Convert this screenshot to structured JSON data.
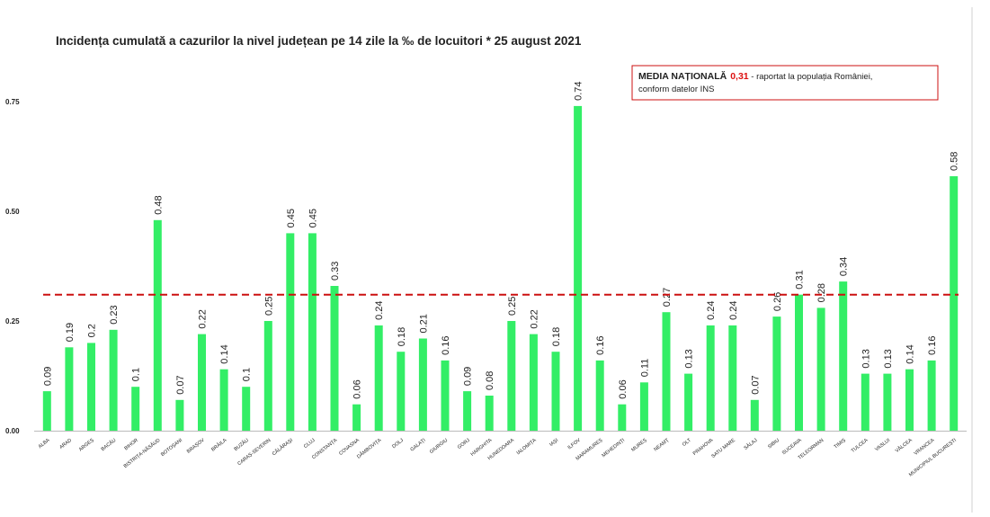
{
  "chart_data": {
    "type": "bar",
    "title": "Incidența cumulată a cazurilor la nivel județean pe 14 zile la ‰ de locuitori * 25 august 2021",
    "xlabel": "",
    "ylabel": "",
    "ylim": [
      0,
      0.8
    ],
    "yticks": [
      0.0,
      0.25,
      0.5,
      0.75
    ],
    "ytick_labels": [
      "0.00",
      "0.25",
      "0.50",
      "0.75"
    ],
    "grid": false,
    "bar_color": "#33ee66",
    "categories": [
      "ALBA",
      "ARAD",
      "ARGEȘ",
      "BACĂU",
      "BIHOR",
      "BISTRIȚA-NĂSĂUD",
      "BOTOȘANI",
      "BRAȘOV",
      "BRĂILA",
      "BUZĂU",
      "CARAȘ-SEVERIN",
      "CĂLĂRAȘI",
      "CLUJ",
      "CONSTANȚA",
      "COVASNA",
      "DÂMBOVIȚA",
      "DOLJ",
      "GALAȚI",
      "GIURGIU",
      "GORJ",
      "HARGHITA",
      "HUNEDOARA",
      "IALOMIȚA",
      "IAȘI",
      "ILFOV",
      "MARAMUREȘ",
      "MEHEDINȚI",
      "MUREȘ",
      "NEAMȚ",
      "OLT",
      "PRAHOVA",
      "SATU MARE",
      "SĂLAJ",
      "SIBIU",
      "SUCEAVA",
      "TELEORMAN",
      "TIMIȘ",
      "TULCEA",
      "VASLUI",
      "VÂLCEA",
      "VRANCEA",
      "MUNICIPIUL BUCUREȘTI"
    ],
    "values": [
      0.09,
      0.19,
      0.2,
      0.23,
      0.1,
      0.48,
      0.07,
      0.22,
      0.14,
      0.1,
      0.25,
      0.45,
      0.45,
      0.33,
      0.06,
      0.24,
      0.18,
      0.21,
      0.16,
      0.09,
      0.08,
      0.25,
      0.22,
      0.18,
      0.74,
      0.16,
      0.06,
      0.11,
      0.27,
      0.13,
      0.24,
      0.24,
      0.07,
      0.26,
      0.31,
      0.28,
      0.34,
      0.13,
      0.13,
      0.14,
      0.16,
      0.58
    ],
    "value_labels": [
      "0.09",
      "0.19",
      "0.2",
      "0.23",
      "0.1",
      "0.48",
      "0.07",
      "0.22",
      "0.14",
      "0.1",
      "0.25",
      "0.45",
      "0.45",
      "0.33",
      "0.06",
      "0.24",
      "0.18",
      "0.21",
      "0.16",
      "0.09",
      "0.08",
      "0.25",
      "0.22",
      "0.18",
      "0.74",
      "0.16",
      "0.06",
      "0.11",
      "0.27",
      "0.13",
      "0.24",
      "0.24",
      "0.07",
      "0.26",
      "0.31",
      "0.28",
      "0.34",
      "0.13",
      "0.13",
      "0.14",
      "0.16",
      "0.58"
    ],
    "reference_line": {
      "value": 0.31,
      "color": "#cc1111",
      "style": "dashed"
    },
    "annotation": {
      "label": "MEDIA NAȚIONALĂ",
      "value": "0,31",
      "text": " - raportat la populația României,",
      "line2": "conform datelor INS",
      "border_color": "#cc1111",
      "value_color": "#dd1111"
    }
  }
}
